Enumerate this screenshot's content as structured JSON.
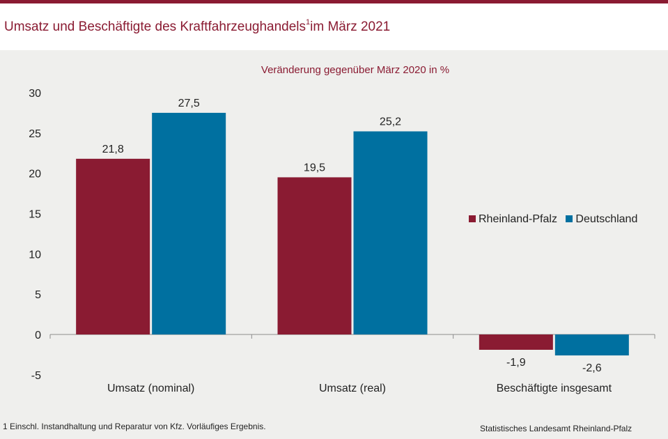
{
  "header": {
    "title": "Umsatz und Beschäftigte des Kraftfahrzeughandels",
    "title_footnote_marker": "1",
    "title_suffix": "im März 2021"
  },
  "chart_data": {
    "type": "bar",
    "title": "Umsatz und Beschäftigte des Kraftfahrzeughandels im März 2021",
    "subtitle": "Veränderung gegenüber März 2020 in %",
    "categories": [
      "Umsatz (nominal)",
      "Umsatz (real)",
      "Beschäftigte insgesamt"
    ],
    "series": [
      {
        "name": "Rheinland-Pfalz",
        "color": "#8a1b32",
        "values": [
          21.8,
          19.5,
          -1.9
        ],
        "labels": [
          "21,8",
          "19,5",
          "-1,9"
        ]
      },
      {
        "name": "Deutschland",
        "color": "#0070a0",
        "values": [
          27.5,
          25.2,
          -2.6
        ],
        "labels": [
          "27,5",
          "25,2",
          "-2,6"
        ]
      }
    ],
    "ylim": [
      -5,
      30
    ],
    "yticks": [
      30,
      25,
      20,
      15,
      10,
      5,
      0,
      -5
    ],
    "xlabel": "",
    "ylabel": "",
    "grid": false,
    "legend_position": "right"
  },
  "footer": {
    "footnote": "1 Einschl. Instandhaltung und Reparatur von Kfz. Vorläufiges Ergebnis.",
    "source": "Statistisches Landesamt Rheinland-Pfalz"
  }
}
